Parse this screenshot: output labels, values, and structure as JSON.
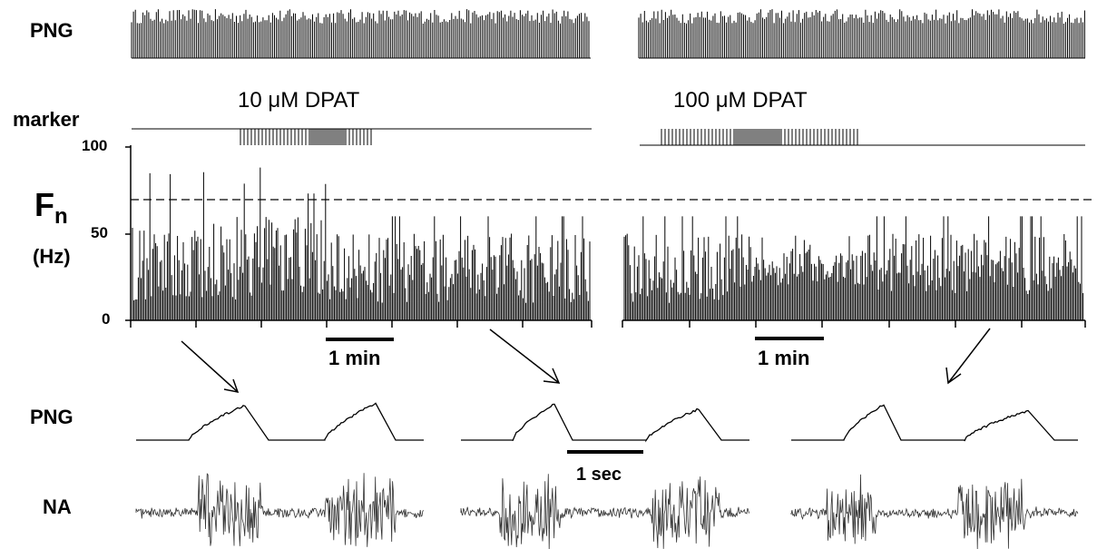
{
  "figure": {
    "labels": {
      "png_top": "PNG",
      "marker": "marker",
      "fn_symbol": "F",
      "fn_subscript": "n",
      "fn_unit": "(Hz)",
      "png_bottom": "PNG",
      "na_bottom": "NA"
    },
    "drug_left": "10 μM DPAT",
    "drug_right": "100 μM DPAT",
    "scale_left": "1 min",
    "scale_right": "1 min",
    "scale_sec": "1 sec",
    "colors": {
      "trace": "#000000",
      "na_trace": "#333333"
    }
  },
  "chart_data": {
    "type": "bar",
    "ylim": [
      0,
      100
    ],
    "y_ticks": [
      "100",
      "50",
      "0"
    ],
    "threshold_hz": 70,
    "panels": [
      {
        "name": "10 μM DPAT",
        "baseline_max_hz": 60,
        "peak_hz": 90,
        "steady_hz": 50
      },
      {
        "name": "100 μM DPAT",
        "baseline_max_hz": 60,
        "trough_hz": 30,
        "recovered_hz": 50
      }
    ]
  }
}
